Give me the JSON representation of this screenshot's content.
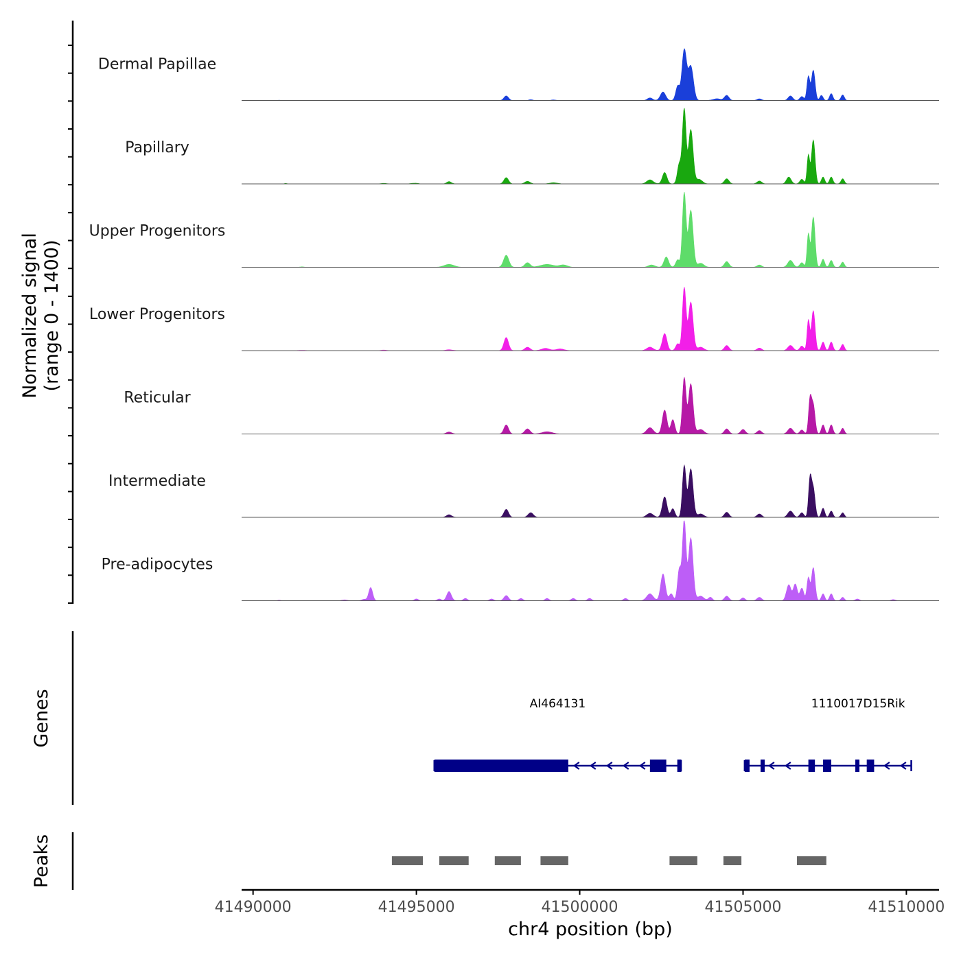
{
  "chart_data": {
    "type": "area",
    "y_axis_label_line1": "Normalized signal",
    "y_axis_label_line2": "(range 0 - 1400)",
    "y_range": [
      0,
      1400
    ],
    "x_label": "chr4 position (bp)",
    "x_range": [
      41489650,
      41511000
    ],
    "x_ticks": [
      41490000,
      41495000,
      41500000,
      41505000,
      41510000
    ],
    "x_tick_labels": [
      "41490000",
      "41495000",
      "41500000",
      "41505000",
      "41510000"
    ],
    "series": [
      {
        "name": "Dermal Papillae",
        "color": "#1a3fd9",
        "peaks": [
          [
            41490800,
            6,
            25
          ],
          [
            41497750,
            80,
            70
          ],
          [
            41498500,
            15,
            60
          ],
          [
            41499200,
            10,
            70
          ],
          [
            41502150,
            45,
            80
          ],
          [
            41502550,
            150,
            80
          ],
          [
            41503000,
            250,
            60
          ],
          [
            41503200,
            880,
            70
          ],
          [
            41503400,
            600,
            80
          ],
          [
            41504200,
            30,
            120
          ],
          [
            41504500,
            90,
            70
          ],
          [
            41505500,
            30,
            70
          ],
          [
            41506450,
            80,
            70
          ],
          [
            41506800,
            70,
            60
          ],
          [
            41507000,
            420,
            45
          ],
          [
            41507150,
            530,
            55
          ],
          [
            41507400,
            90,
            50
          ],
          [
            41507700,
            120,
            50
          ],
          [
            41508050,
            100,
            50
          ]
        ]
      },
      {
        "name": "Papillary",
        "color": "#19a80f",
        "peaks": [
          [
            41491000,
            8,
            40
          ],
          [
            41494000,
            10,
            80
          ],
          [
            41494950,
            12,
            100
          ],
          [
            41496000,
            40,
            70
          ],
          [
            41497750,
            110,
            70
          ],
          [
            41498400,
            45,
            80
          ],
          [
            41499200,
            20,
            120
          ],
          [
            41502150,
            70,
            100
          ],
          [
            41502600,
            200,
            70
          ],
          [
            41503050,
            350,
            60
          ],
          [
            41503200,
            1300,
            55
          ],
          [
            41503400,
            950,
            70
          ],
          [
            41503650,
            80,
            100
          ],
          [
            41504500,
            90,
            70
          ],
          [
            41505500,
            50,
            70
          ],
          [
            41506400,
            120,
            70
          ],
          [
            41506800,
            80,
            60
          ],
          [
            41507000,
            500,
            40
          ],
          [
            41507150,
            770,
            55
          ],
          [
            41507450,
            120,
            50
          ],
          [
            41507700,
            120,
            50
          ],
          [
            41508050,
            90,
            50
          ]
        ]
      },
      {
        "name": "Upper Progenitors",
        "color": "#5edc6a",
        "peaks": [
          [
            41491500,
            8,
            60
          ],
          [
            41496000,
            50,
            150
          ],
          [
            41497750,
            210,
            80
          ],
          [
            41498400,
            80,
            80
          ],
          [
            41499000,
            50,
            200
          ],
          [
            41499500,
            40,
            120
          ],
          [
            41502200,
            40,
            100
          ],
          [
            41502650,
            180,
            70
          ],
          [
            41503000,
            130,
            60
          ],
          [
            41503200,
            1300,
            55
          ],
          [
            41503400,
            1000,
            70
          ],
          [
            41503700,
            70,
            100
          ],
          [
            41504500,
            100,
            70
          ],
          [
            41505500,
            40,
            70
          ],
          [
            41506450,
            120,
            80
          ],
          [
            41506800,
            80,
            60
          ],
          [
            41507000,
            580,
            40
          ],
          [
            41507150,
            880,
            55
          ],
          [
            41507450,
            140,
            50
          ],
          [
            41507700,
            120,
            50
          ],
          [
            41508050,
            90,
            50
          ]
        ]
      },
      {
        "name": "Lower Progenitors",
        "color": "#f21fe8",
        "peaks": [
          [
            41491500,
            6,
            100
          ],
          [
            41494000,
            10,
            80
          ],
          [
            41496000,
            15,
            100
          ],
          [
            41497750,
            230,
            70
          ],
          [
            41498400,
            60,
            80
          ],
          [
            41498950,
            40,
            120
          ],
          [
            41499400,
            30,
            120
          ],
          [
            41502150,
            60,
            100
          ],
          [
            41502600,
            300,
            70
          ],
          [
            41503000,
            120,
            60
          ],
          [
            41503200,
            1100,
            55
          ],
          [
            41503400,
            850,
            70
          ],
          [
            41503700,
            60,
            100
          ],
          [
            41504500,
            90,
            70
          ],
          [
            41505500,
            45,
            70
          ],
          [
            41506450,
            90,
            80
          ],
          [
            41506800,
            80,
            60
          ],
          [
            41507000,
            530,
            40
          ],
          [
            41507150,
            700,
            55
          ],
          [
            41507450,
            150,
            50
          ],
          [
            41507700,
            150,
            50
          ],
          [
            41508050,
            110,
            50
          ]
        ]
      },
      {
        "name": "Reticular",
        "color": "#b619a6",
        "peaks": [
          [
            41496000,
            35,
            80
          ],
          [
            41497750,
            160,
            70
          ],
          [
            41498400,
            90,
            80
          ],
          [
            41499000,
            40,
            150
          ],
          [
            41502150,
            110,
            100
          ],
          [
            41502600,
            420,
            70
          ],
          [
            41502850,
            250,
            60
          ],
          [
            41503200,
            980,
            55
          ],
          [
            41503400,
            880,
            70
          ],
          [
            41503700,
            80,
            100
          ],
          [
            41504500,
            90,
            70
          ],
          [
            41505000,
            80,
            70
          ],
          [
            41505500,
            60,
            70
          ],
          [
            41506450,
            100,
            80
          ],
          [
            41506800,
            70,
            60
          ],
          [
            41507050,
            580,
            45
          ],
          [
            41507150,
            500,
            55
          ],
          [
            41507450,
            160,
            50
          ],
          [
            41507700,
            160,
            50
          ],
          [
            41508050,
            100,
            50
          ]
        ]
      },
      {
        "name": "Intermediate",
        "color": "#3a0e61",
        "peaks": [
          [
            41496000,
            45,
            80
          ],
          [
            41497750,
            140,
            70
          ],
          [
            41498500,
            80,
            80
          ],
          [
            41502150,
            70,
            100
          ],
          [
            41502600,
            360,
            70
          ],
          [
            41502850,
            150,
            60
          ],
          [
            41503200,
            900,
            55
          ],
          [
            41503400,
            850,
            70
          ],
          [
            41503700,
            60,
            100
          ],
          [
            41504500,
            90,
            70
          ],
          [
            41505500,
            60,
            70
          ],
          [
            41506450,
            110,
            80
          ],
          [
            41506800,
            80,
            60
          ],
          [
            41507050,
            650,
            45
          ],
          [
            41507150,
            500,
            55
          ],
          [
            41507450,
            160,
            50
          ],
          [
            41507700,
            110,
            50
          ],
          [
            41508050,
            80,
            50
          ]
        ]
      },
      {
        "name": "Pre-adipocytes",
        "color": "#bd5ef7",
        "peaks": [
          [
            41490800,
            10,
            40
          ],
          [
            41492800,
            15,
            80
          ],
          [
            41493400,
            25,
            70
          ],
          [
            41493600,
            230,
            60
          ],
          [
            41495000,
            30,
            60
          ],
          [
            41495700,
            30,
            60
          ],
          [
            41496000,
            160,
            70
          ],
          [
            41496500,
            40,
            60
          ],
          [
            41497300,
            30,
            60
          ],
          [
            41497750,
            90,
            70
          ],
          [
            41498200,
            40,
            60
          ],
          [
            41499000,
            40,
            60
          ],
          [
            41499800,
            40,
            60
          ],
          [
            41500300,
            40,
            60
          ],
          [
            41501400,
            40,
            60
          ],
          [
            41502150,
            120,
            100
          ],
          [
            41502550,
            470,
            70
          ],
          [
            41502800,
            120,
            60
          ],
          [
            41503050,
            550,
            55
          ],
          [
            41503200,
            1400,
            55
          ],
          [
            41503400,
            1100,
            70
          ],
          [
            41503700,
            80,
            100
          ],
          [
            41504000,
            60,
            60
          ],
          [
            41504500,
            80,
            70
          ],
          [
            41505000,
            50,
            60
          ],
          [
            41505500,
            60,
            70
          ],
          [
            41506400,
            280,
            70
          ],
          [
            41506600,
            290,
            60
          ],
          [
            41506800,
            220,
            60
          ],
          [
            41507000,
            400,
            45
          ],
          [
            41507150,
            580,
            55
          ],
          [
            41507450,
            120,
            50
          ],
          [
            41507700,
            120,
            50
          ],
          [
            41508050,
            60,
            50
          ],
          [
            41508500,
            30,
            60
          ],
          [
            41509600,
            20,
            60
          ]
        ]
      }
    ],
    "genes_axis_label": "Genes",
    "genes": [
      {
        "name": "AI464131",
        "color": "#000087",
        "strand": "-",
        "start": 41495550,
        "end": 41503100,
        "thick": [
          [
            41495550,
            41499650
          ],
          [
            41502150,
            41502650
          ]
        ],
        "exon_marks": [
          41503050
        ]
      },
      {
        "name": "1110017D15Rik",
        "color": "#000087",
        "strand": "-",
        "start": 41505050,
        "end": 41510150,
        "thick": [
          [
            41505050,
            41505200
          ],
          [
            41507000,
            41507200
          ],
          [
            41507450,
            41507700
          ]
        ],
        "exon_marks": [
          41505600,
          41508500,
          41508850,
          41508950
        ]
      }
    ],
    "peaks_axis_label": "Peaks",
    "peak_regions": [
      [
        41494250,
        41495200
      ],
      [
        41495700,
        41496600
      ],
      [
        41497400,
        41498200
      ],
      [
        41498800,
        41499650
      ],
      [
        41502750,
        41503600
      ],
      [
        41504400,
        41504950
      ],
      [
        41506650,
        41507550
      ]
    ],
    "peak_color": "#666666"
  }
}
